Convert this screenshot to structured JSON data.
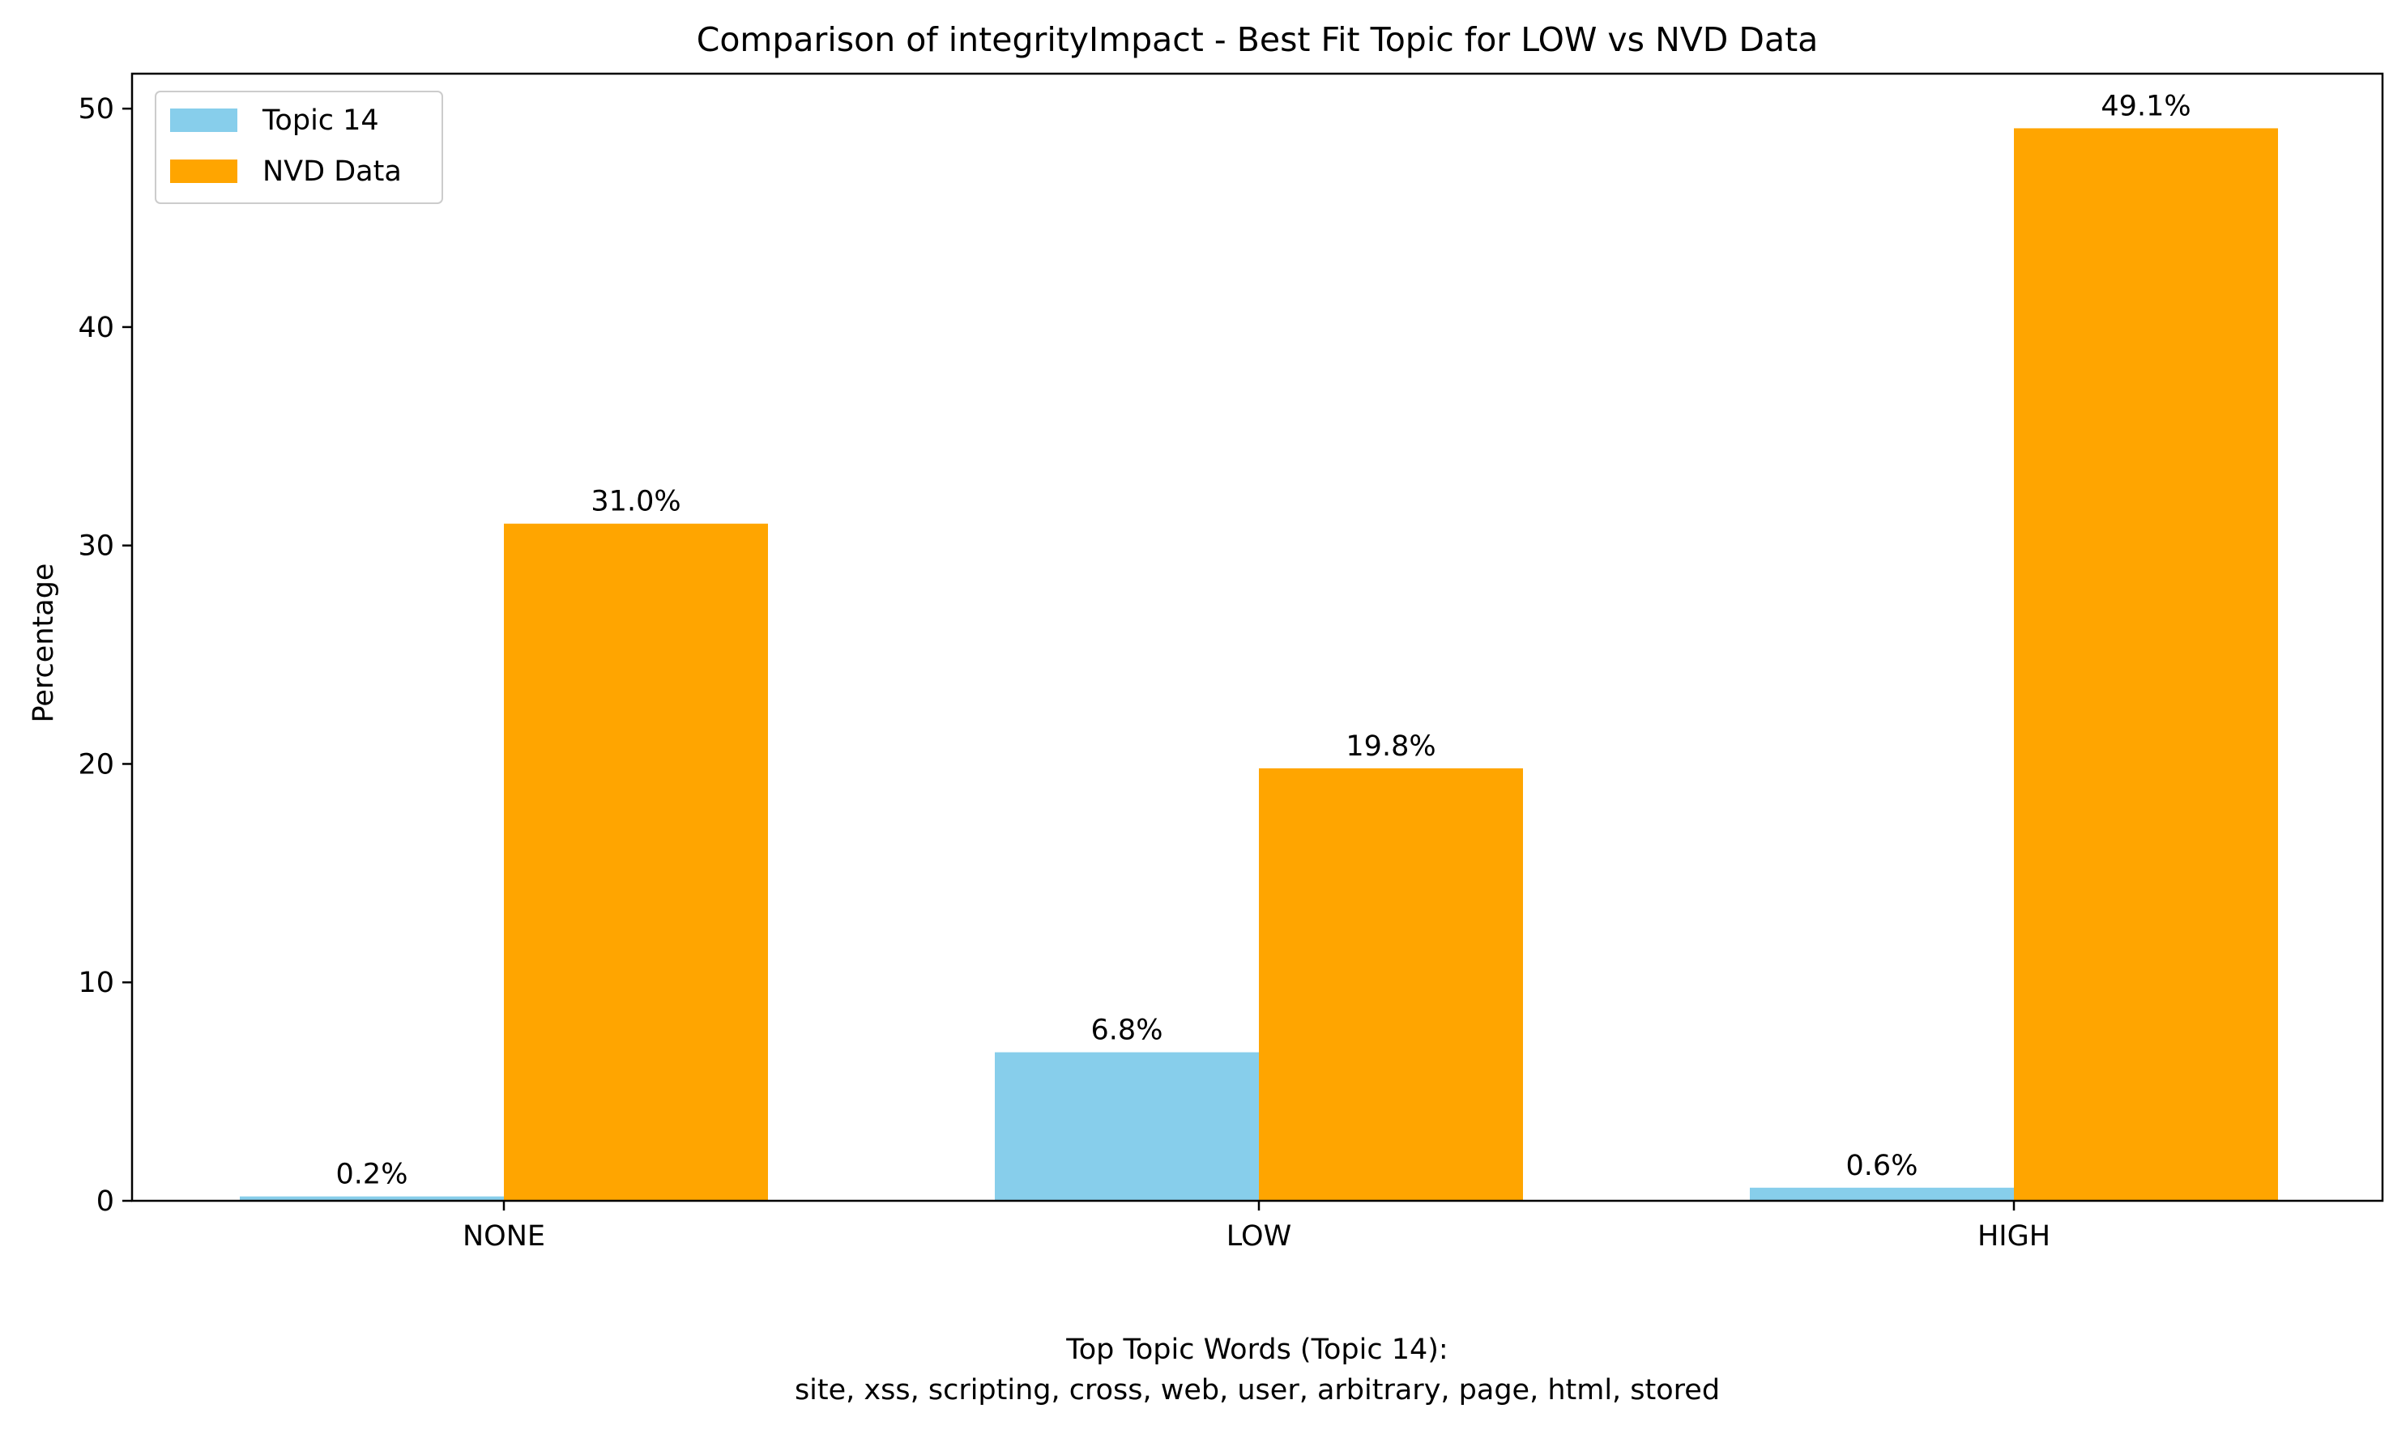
{
  "chart_data": {
    "type": "bar",
    "title": "Comparison of integrityImpact - Best Fit Topic for LOW vs NVD Data",
    "xlabel": "",
    "ylabel": "Percentage",
    "categories": [
      "NONE",
      "LOW",
      "HIGH"
    ],
    "series": [
      {
        "name": "Topic 14",
        "values": [
          0.2,
          6.8,
          0.6
        ],
        "labels": [
          "0.2%",
          "6.8%",
          "0.6%"
        ],
        "color": "#87CEEB"
      },
      {
        "name": "NVD Data",
        "values": [
          31.0,
          19.8,
          49.1
        ],
        "labels": [
          "31.0%",
          "19.8%",
          "49.1%"
        ],
        "color": "#FFA500"
      }
    ],
    "ylim": [
      0,
      51.6
    ],
    "yticks": [
      0,
      10,
      20,
      30,
      40,
      50
    ],
    "grid": false,
    "legend_position": "upper left"
  },
  "footer": {
    "line1": "Top Topic Words (Topic 14):",
    "line2": "site,  xss,  scripting,  cross,  web,  user,  arbitrary,  page,  html,  stored"
  }
}
